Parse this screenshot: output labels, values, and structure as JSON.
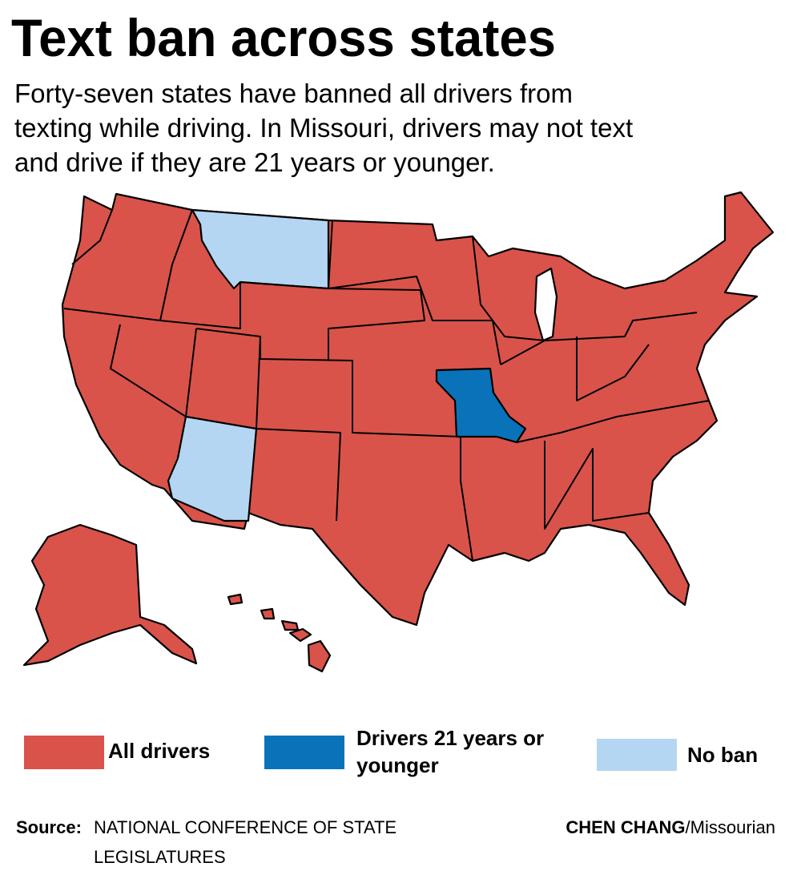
{
  "header": {
    "title": "Text ban across states",
    "description_lines": [
      "Forty-seven states have banned all drivers from",
      "texting while driving. In Missouri, drivers may not text",
      "and drive if they are 21 years or younger."
    ]
  },
  "legend": [
    {
      "label_lines": [
        "All drivers"
      ],
      "color": "#d9534a"
    },
    {
      "label_lines": [
        "Drivers 21 years or",
        "younger"
      ],
      "color": "#0a72b8"
    },
    {
      "label_lines": [
        "No ban"
      ],
      "color": "#b5d6f2"
    }
  ],
  "footer": {
    "source_prefix": "Source:",
    "source_lines": [
      "NATIONAL CONFERENCE OF STATE",
      "LEGISLATURES"
    ],
    "credit_name": "CHEN CHANG",
    "credit_outlet": "/Missourian"
  }
}
